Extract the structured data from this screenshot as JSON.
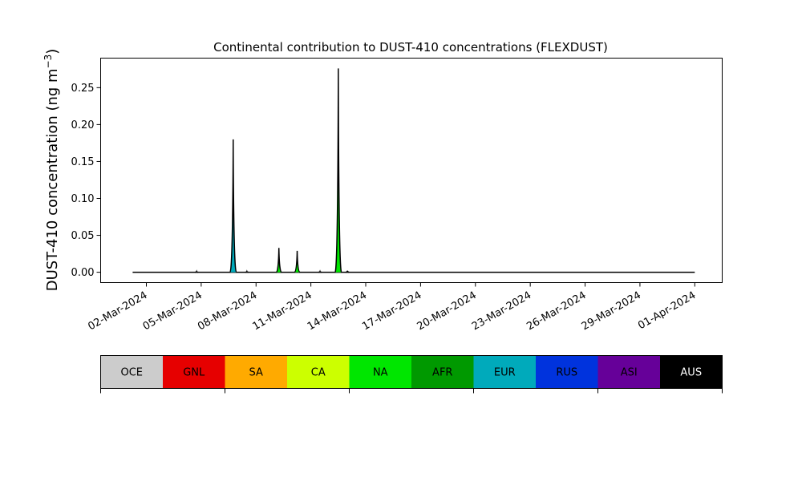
{
  "chart_data": {
    "type": "area",
    "title": "Continental contribution to DUST-410 concentrations (FLEXDUST)",
    "xlabel": "",
    "ylabel": "DUST-410 concentration (ng m",
    "ylabel_sup": "−3",
    "ylabel_close": ")",
    "ylim": [
      -0.014,
      0.29
    ],
    "xlim": [
      "2024-02-28T12:00",
      "2024-04-02T12:00"
    ],
    "yticks": [
      0.0,
      0.05,
      0.1,
      0.15,
      0.2,
      0.25
    ],
    "ytick_labels": [
      "0.00",
      "0.05",
      "0.10",
      "0.15",
      "0.20",
      "0.25"
    ],
    "xticks": [
      "2024-03-02",
      "2024-03-05",
      "2024-03-08",
      "2024-03-11",
      "2024-03-14",
      "2024-03-17",
      "2024-03-20",
      "2024-03-23",
      "2024-03-26",
      "2024-03-29",
      "2024-04-01"
    ],
    "xtick_labels": [
      "02-Mar-2024",
      "05-Mar-2024",
      "08-Mar-2024",
      "11-Mar-2024",
      "14-Mar-2024",
      "17-Mar-2024",
      "20-Mar-2024",
      "23-Mar-2024",
      "26-Mar-2024",
      "29-Mar-2024",
      "01-Apr-2024"
    ],
    "grid": false,
    "legend_position": "bottom",
    "series": [
      {
        "name": "OCE",
        "color": "#cccccc"
      },
      {
        "name": "GNL",
        "color": "#e60000"
      },
      {
        "name": "SA",
        "color": "#ffaa00"
      },
      {
        "name": "CA",
        "color": "#ccff00"
      },
      {
        "name": "NA",
        "color": "#00e600"
      },
      {
        "name": "AFR",
        "color": "#009900"
      },
      {
        "name": "EUR",
        "color": "#00aabb"
      },
      {
        "name": "RUS",
        "color": "#0033dd"
      },
      {
        "name": "ASI",
        "color": "#660099"
      },
      {
        "name": "AUS",
        "color": "#000000"
      }
    ],
    "series_start": "2024-03-01T06:00",
    "series_end": "2024-04-01T00:00",
    "peaks": [
      {
        "time": "2024-03-04T18:00",
        "total": 0.001,
        "dominant": "RUS"
      },
      {
        "time": "2024-03-06T18:00",
        "total": 0.18,
        "dominant": "EUR"
      },
      {
        "time": "2024-03-07T12:00",
        "total": 0.001,
        "dominant": "RUS"
      },
      {
        "time": "2024-03-09T06:00",
        "total": 0.033,
        "dominant": "NA"
      },
      {
        "time": "2024-03-10T06:00",
        "total": 0.029,
        "dominant": "NA"
      },
      {
        "time": "2024-03-11T12:00",
        "total": 0.001,
        "dominant": "NA"
      },
      {
        "time": "2024-03-12T12:00",
        "total": 0.276,
        "dominant": "NA"
      },
      {
        "time": "2024-03-13T00:00",
        "total": 0.002,
        "dominant": "NA"
      }
    ]
  }
}
